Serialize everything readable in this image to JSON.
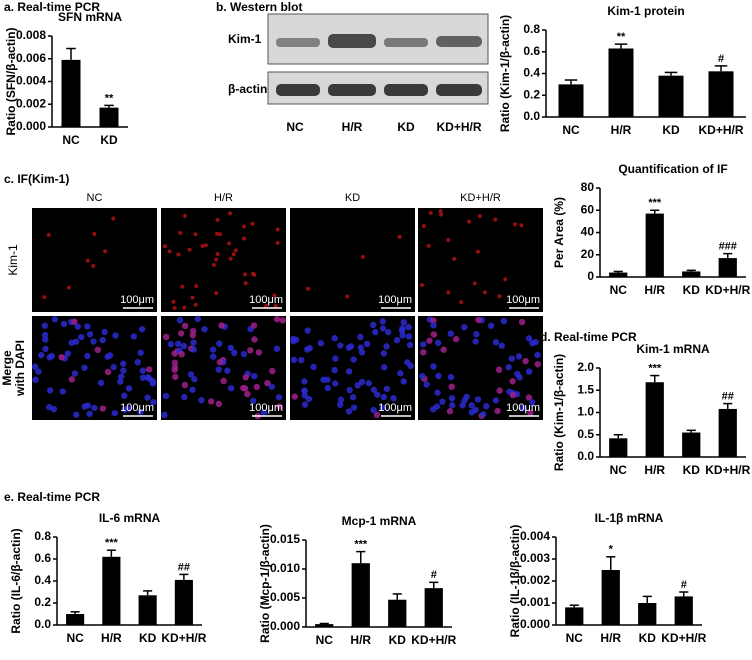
{
  "labels": {
    "panel_a": "a. Real-time PCR",
    "panel_b": "b. Western blot",
    "panel_c": "c. IF(Kim-1)",
    "panel_d": "d. Real-time PCR",
    "panel_e": "e. Real-time PCR"
  },
  "western_blot": {
    "rows": [
      "Kim-1",
      "β-actin"
    ],
    "lanes": [
      "NC",
      "H/R",
      "KD",
      "KD+H/R"
    ]
  },
  "if_images": {
    "columns": [
      "NC",
      "H/R",
      "KD",
      "KD+H/R"
    ],
    "rows": [
      [
        "Kim-1"
      ],
      [
        "Merge",
        "with DAPI"
      ]
    ],
    "scale_bar": "100μm"
  },
  "chart_data": [
    {
      "type": "bar",
      "title": "SFN mRNA",
      "y_label": "Ratio (SFN/β-actin)",
      "color": "#000000",
      "categories": [
        "NC",
        "KD"
      ],
      "values": [
        0.0059,
        0.0017
      ],
      "errors": [
        0.001,
        0.0002
      ],
      "annotations": [
        null,
        "**"
      ],
      "ylim": [
        0,
        0.008
      ],
      "yticks": [
        {
          "value": 0,
          "label": "0.000"
        },
        0.002,
        0.004,
        0.006,
        0.008
      ]
    },
    {
      "type": "bar",
      "title": "Kim-1 protein",
      "y_label": "Ratio (Kim-1/β-actin)",
      "color": "#000000",
      "categories": [
        "NC",
        "H/R",
        "KD",
        "KD+H/R"
      ],
      "values": [
        0.3,
        0.63,
        0.38,
        0.42
      ],
      "errors": [
        0.04,
        0.04,
        0.03,
        0.05
      ],
      "annotations": [
        null,
        "**",
        null,
        "#"
      ],
      "ylim": [
        0,
        0.8
      ],
      "yticks": [
        {
          "value": 0,
          "label": "0.0"
        },
        0.2,
        0.4,
        0.6,
        0.8
      ]
    },
    {
      "type": "bar",
      "title": "Quantification of IF",
      "y_label": "Per Area (%)",
      "color": "#000000",
      "categories": [
        "NC",
        "H/R",
        "KD",
        "KD+H/R"
      ],
      "values": [
        4,
        57,
        5,
        17
      ],
      "errors": [
        1,
        3,
        1,
        4
      ],
      "annotations": [
        null,
        "***",
        null,
        "###"
      ],
      "ylim": [
        0,
        80
      ],
      "yticks": [
        0,
        20,
        40,
        60,
        80
      ]
    },
    {
      "type": "bar",
      "title": "Kim-1 mRNA",
      "y_label": "Ratio (Kim-1/β-actin)",
      "color": "#000000",
      "categories": [
        "NC",
        "H/R",
        "KD",
        "KD+H/R"
      ],
      "values": [
        0.42,
        1.68,
        0.55,
        1.08
      ],
      "errors": [
        0.08,
        0.15,
        0.05,
        0.12
      ],
      "annotations": [
        null,
        "***",
        null,
        "##"
      ],
      "ylim": [
        0,
        2
      ],
      "yticks": [
        {
          "value": 0,
          "label": "0.0"
        },
        0.5,
        {
          "value": 1,
          "label": "1.0"
        },
        1.5,
        {
          "value": 2,
          "label": "2.0"
        }
      ]
    },
    {
      "type": "bar",
      "title": "IL-6 mRNA",
      "y_label": "Ratio (IL-6/β-actin)",
      "color": "#000000",
      "categories": [
        "NC",
        "H/R",
        "KD",
        "KD+H/R"
      ],
      "values": [
        0.1,
        0.62,
        0.27,
        0.41
      ],
      "errors": [
        0.02,
        0.06,
        0.04,
        0.05
      ],
      "annotations": [
        null,
        "***",
        null,
        "##"
      ],
      "ylim": [
        0,
        0.8
      ],
      "yticks": [
        {
          "value": 0,
          "label": "0.0"
        },
        0.2,
        0.4,
        0.6,
        0.8
      ]
    },
    {
      "type": "bar",
      "title": "Mcp-1 mRNA",
      "y_label": "Ratio (Mcp-1/β-actin)",
      "color": "#000000",
      "categories": [
        "NC",
        "H/R",
        "KD",
        "KD+H/R"
      ],
      "values": [
        0.0005,
        0.011,
        0.0047,
        0.0067
      ],
      "errors": [
        0.0001,
        0.002,
        0.001,
        0.001
      ],
      "annotations": [
        null,
        "***",
        null,
        "#"
      ],
      "ylim": [
        0,
        0.015
      ],
      "yticks": [
        {
          "value": 0,
          "label": "0.000"
        },
        0.005,
        {
          "value": 0.01,
          "label": "0.010"
        },
        0.015
      ]
    },
    {
      "type": "bar",
      "title": "IL-1β mRNA",
      "y_label": "Ratio (IL-1β/β-actin)",
      "color": "#000000",
      "categories": [
        "NC",
        "H/R",
        "KD",
        "KD+H/R"
      ],
      "values": [
        0.0008,
        0.0025,
        0.001,
        0.0013
      ],
      "errors": [
        0.0001,
        0.0006,
        0.0003,
        0.0002
      ],
      "annotations": [
        null,
        "*",
        null,
        "#"
      ],
      "ylim": [
        0,
        0.004
      ],
      "yticks": [
        {
          "value": 0,
          "label": "0.000"
        },
        0.001,
        0.002,
        0.003,
        0.004
      ]
    }
  ]
}
